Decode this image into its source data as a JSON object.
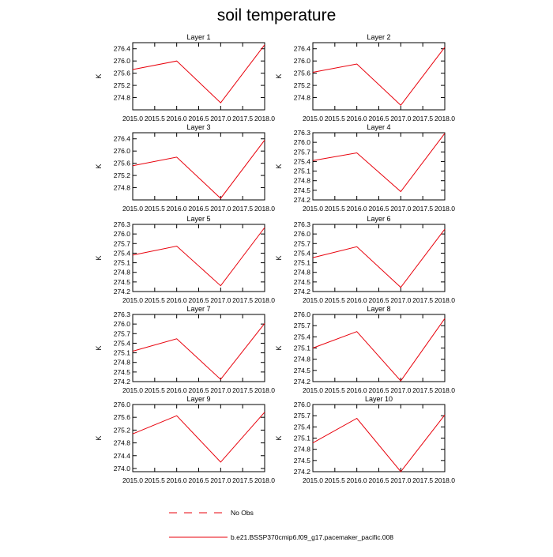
{
  "figure": {
    "title": "soil temperature",
    "legend": [
      {
        "label": "No Obs",
        "style": "dashed",
        "color": "#e8000b"
      },
      {
        "label": "b.e21.BSSP370cmip6.f09_g17.pacemaker_pacific.008",
        "style": "solid",
        "color": "#e8000b"
      }
    ],
    "line_color": "#e8000b"
  },
  "chart_data": [
    {
      "type": "line",
      "title": "Layer 1",
      "xlabel": "",
      "ylabel": "K",
      "xlim": [
        2015.0,
        2018.0
      ],
      "ylim": [
        274.4,
        276.6
      ],
      "xticks": [
        "2015.0",
        "2015.5",
        "2016.0",
        "2016.5",
        "2017.0",
        "2017.5",
        "2018.0"
      ],
      "yticks": [
        "276.4",
        "276.0",
        "275.6",
        "275.2",
        "274.8"
      ],
      "x": [
        2015,
        2016,
        2017,
        2018
      ],
      "series": [
        {
          "values": [
            275.72,
            276.0,
            274.63,
            276.53
          ]
        }
      ]
    },
    {
      "type": "line",
      "title": "Layer 2",
      "xlabel": "",
      "ylabel": "K",
      "xlim": [
        2015.0,
        2018.0
      ],
      "ylim": [
        274.4,
        276.6
      ],
      "xticks": [
        "2015.0",
        "2015.5",
        "2016.0",
        "2016.5",
        "2017.0",
        "2017.5",
        "2018.0"
      ],
      "yticks": [
        "276.4",
        "276.0",
        "275.6",
        "275.2",
        "274.8"
      ],
      "x": [
        2015,
        2016,
        2017,
        2018
      ],
      "series": [
        {
          "values": [
            275.63,
            275.9,
            274.55,
            276.45
          ]
        }
      ]
    },
    {
      "type": "line",
      "title": "Layer 3",
      "xlabel": "",
      "ylabel": "K",
      "xlim": [
        2015.0,
        2018.0
      ],
      "ylim": [
        274.4,
        276.6
      ],
      "xticks": [
        "2015.0",
        "2015.5",
        "2016.0",
        "2016.5",
        "2017.0",
        "2017.5",
        "2018.0"
      ],
      "yticks": [
        "276.4",
        "276.0",
        "275.6",
        "275.2",
        "274.8"
      ],
      "x": [
        2015,
        2016,
        2017,
        2018
      ],
      "series": [
        {
          "values": [
            275.52,
            275.8,
            274.45,
            276.36
          ]
        }
      ]
    },
    {
      "type": "line",
      "title": "Layer 4",
      "xlabel": "",
      "ylabel": "K",
      "xlim": [
        2015.0,
        2018.0
      ],
      "ylim": [
        274.2,
        276.3
      ],
      "xticks": [
        "2015.0",
        "2015.5",
        "2016.0",
        "2016.5",
        "2017.0",
        "2017.5",
        "2018.0"
      ],
      "yticks": [
        "276.3",
        "276.0",
        "275.7",
        "275.4",
        "275.1",
        "274.8",
        "274.5",
        "274.2"
      ],
      "x": [
        2015,
        2016,
        2017,
        2018
      ],
      "series": [
        {
          "values": [
            275.43,
            275.67,
            274.46,
            276.28
          ]
        }
      ]
    },
    {
      "type": "line",
      "title": "Layer 5",
      "xlabel": "",
      "ylabel": "K",
      "xlim": [
        2015.0,
        2018.0
      ],
      "ylim": [
        274.2,
        276.3
      ],
      "xticks": [
        "2015.0",
        "2015.5",
        "2016.0",
        "2016.5",
        "2017.0",
        "2017.5",
        "2018.0"
      ],
      "yticks": [
        "276.3",
        "276.0",
        "275.7",
        "275.4",
        "275.1",
        "274.8",
        "274.5",
        "274.2"
      ],
      "x": [
        2015,
        2016,
        2017,
        2018
      ],
      "series": [
        {
          "values": [
            275.34,
            275.62,
            274.38,
            276.2
          ]
        }
      ]
    },
    {
      "type": "line",
      "title": "Layer 6",
      "xlabel": "",
      "ylabel": "K",
      "xlim": [
        2015.0,
        2018.0
      ],
      "ylim": [
        274.2,
        276.3
      ],
      "xticks": [
        "2015.0",
        "2015.5",
        "2016.0",
        "2016.5",
        "2017.0",
        "2017.5",
        "2018.0"
      ],
      "yticks": [
        "276.3",
        "276.0",
        "275.7",
        "275.4",
        "275.1",
        "274.8",
        "274.5",
        "274.2"
      ],
      "x": [
        2015,
        2016,
        2017,
        2018
      ],
      "series": [
        {
          "values": [
            275.26,
            275.6,
            274.33,
            276.15
          ]
        }
      ]
    },
    {
      "type": "line",
      "title": "Layer 7",
      "xlabel": "",
      "ylabel": "K",
      "xlim": [
        2015.0,
        2018.0
      ],
      "ylim": [
        274.2,
        276.3
      ],
      "xticks": [
        "2015.0",
        "2015.5",
        "2016.0",
        "2016.5",
        "2017.0",
        "2017.5",
        "2018.0"
      ],
      "yticks": [
        "276.3",
        "276.0",
        "275.7",
        "275.4",
        "275.1",
        "274.8",
        "274.5",
        "274.2"
      ],
      "x": [
        2015,
        2016,
        2017,
        2018
      ],
      "series": [
        {
          "values": [
            275.15,
            275.54,
            274.27,
            276.02
          ]
        }
      ]
    },
    {
      "type": "line",
      "title": "Layer 8",
      "xlabel": "",
      "ylabel": "K",
      "xlim": [
        2015.0,
        2018.0
      ],
      "ylim": [
        274.2,
        276.0
      ],
      "xticks": [
        "2015.0",
        "2015.5",
        "2016.0",
        "2016.5",
        "2017.0",
        "2017.5",
        "2018.0"
      ],
      "yticks": [
        "276.0",
        "275.7",
        "275.4",
        "275.1",
        "274.8",
        "274.5",
        "274.2"
      ],
      "x": [
        2015,
        2016,
        2017,
        2018
      ],
      "series": [
        {
          "values": [
            275.1,
            275.54,
            274.22,
            275.89
          ]
        }
      ]
    },
    {
      "type": "line",
      "title": "Layer 9",
      "xlabel": "",
      "ylabel": "K",
      "xlim": [
        2015.0,
        2018.0
      ],
      "ylim": [
        273.9,
        276.0
      ],
      "xticks": [
        "2015.0",
        "2015.5",
        "2016.0",
        "2016.5",
        "2017.0",
        "2017.5",
        "2018.0"
      ],
      "yticks": [
        "276.0",
        "275.6",
        "275.2",
        "274.8",
        "274.4",
        "274.0"
      ],
      "x": [
        2015,
        2016,
        2017,
        2018
      ],
      "series": [
        {
          "values": [
            275.08,
            275.65,
            274.2,
            275.76
          ]
        }
      ]
    },
    {
      "type": "line",
      "title": "Layer 10",
      "xlabel": "",
      "ylabel": "K",
      "xlim": [
        2015.0,
        2018.0
      ],
      "ylim": [
        274.2,
        276.0
      ],
      "xticks": [
        "2015.0",
        "2015.5",
        "2016.0",
        "2016.5",
        "2017.0",
        "2017.5",
        "2018.0"
      ],
      "yticks": [
        "276.0",
        "275.7",
        "275.4",
        "275.1",
        "274.8",
        "274.5",
        "274.2"
      ],
      "x": [
        2015,
        2016,
        2017,
        2018
      ],
      "series": [
        {
          "values": [
            274.97,
            275.63,
            274.2,
            275.72
          ]
        }
      ]
    }
  ]
}
